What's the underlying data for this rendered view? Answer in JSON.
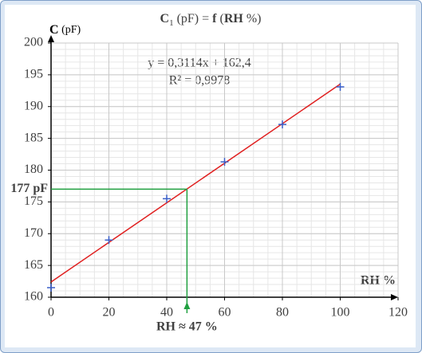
{
  "chart_data": {
    "type": "scatter",
    "title": [
      "C",
      "1",
      " (pF) = ",
      "f",
      " (",
      "RH",
      " %)"
    ],
    "y_label": [
      "C",
      " (pF)"
    ],
    "x_label": "RH %",
    "x": [
      0,
      20,
      40,
      60,
      80,
      100
    ],
    "series": [
      {
        "color": "#3a5fc8",
        "values": [
          161.5,
          169,
          175.5,
          181.3,
          187.2,
          193.1
        ]
      }
    ],
    "trendline": {
      "slope": 0.3114,
      "intercept": 162.4,
      "color": "#e02020"
    },
    "equation": "y = 0,3114x + 162,4",
    "r_squared": "R² = 0,9978",
    "reading": {
      "x": 47,
      "y": 177,
      "y_label": "177 pF",
      "x_label": "RH ≈ 47 %",
      "color": "#20a040"
    },
    "xlim": [
      0,
      120
    ],
    "xticks": [
      0,
      20,
      40,
      60,
      80,
      100,
      120
    ],
    "ylim": [
      160,
      200
    ],
    "yticks": [
      160,
      165,
      170,
      175,
      180,
      185,
      190,
      195,
      200
    ],
    "grid": true,
    "x_minor_step": 5,
    "y_minor_step": 1
  }
}
